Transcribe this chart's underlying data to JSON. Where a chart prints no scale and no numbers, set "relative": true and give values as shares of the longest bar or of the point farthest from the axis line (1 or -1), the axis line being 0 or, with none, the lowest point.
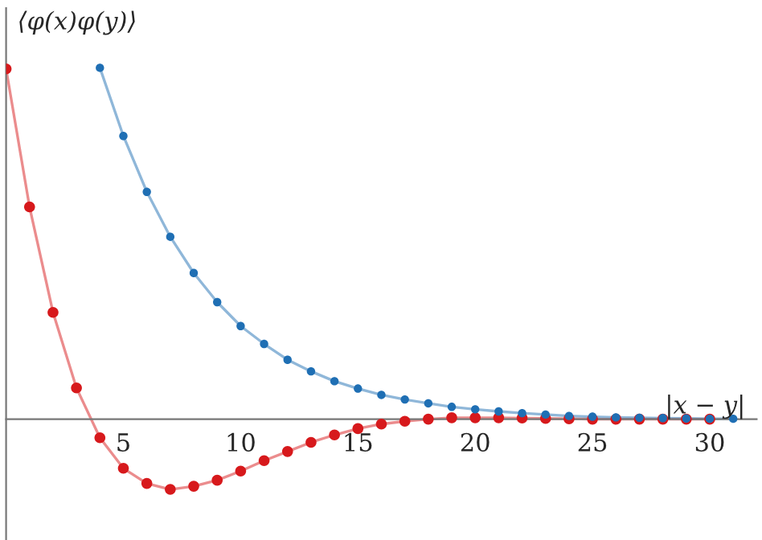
{
  "chart_data": {
    "type": "line",
    "relative": true,
    "xlabel": "|x − y|",
    "ylabel": "⟨φ(x)φ(y)⟩",
    "xlim": [
      0,
      32
    ],
    "xticks": [
      5,
      10,
      15,
      20,
      25,
      30
    ],
    "tick_labels": "x",
    "marker": "circle",
    "line_style": "solid",
    "grid": false,
    "legend": false,
    "series": [
      {
        "color": "#d7191c",
        "x": [
          0,
          1,
          2,
          3,
          4,
          5,
          6,
          7,
          8,
          9,
          10,
          11,
          12,
          13,
          14,
          15,
          16,
          17,
          18,
          19,
          20,
          21,
          22,
          23,
          24,
          25,
          26,
          27,
          28,
          29,
          30
        ],
        "values": [
          0.997,
          0.604,
          0.304,
          0.089,
          -0.053,
          -0.14,
          -0.183,
          -0.2,
          -0.191,
          -0.174,
          -0.148,
          -0.118,
          -0.092,
          -0.066,
          -0.045,
          -0.027,
          -0.014,
          -0.006,
          0.0,
          0.004,
          0.004,
          0.004,
          0.003,
          0.002,
          0.001,
          0,
          0,
          0,
          0,
          0,
          0
        ]
      },
      {
        "color": "#1f6fb4",
        "x": [
          4,
          5,
          6,
          7,
          8,
          9,
          10,
          11,
          12,
          13,
          14,
          15,
          16,
          17,
          18,
          19,
          20,
          21,
          22,
          23,
          24,
          25,
          26,
          27,
          28,
          29,
          30,
          31
        ],
        "values": [
          1.0,
          0.806,
          0.647,
          0.519,
          0.416,
          0.333,
          0.265,
          0.214,
          0.169,
          0.136,
          0.108,
          0.087,
          0.069,
          0.056,
          0.045,
          0.035,
          0.028,
          0.022,
          0.017,
          0.013,
          0.009,
          0.007,
          0.005,
          0.004,
          0.003,
          0.002,
          0.001,
          0.001
        ]
      }
    ]
  }
}
